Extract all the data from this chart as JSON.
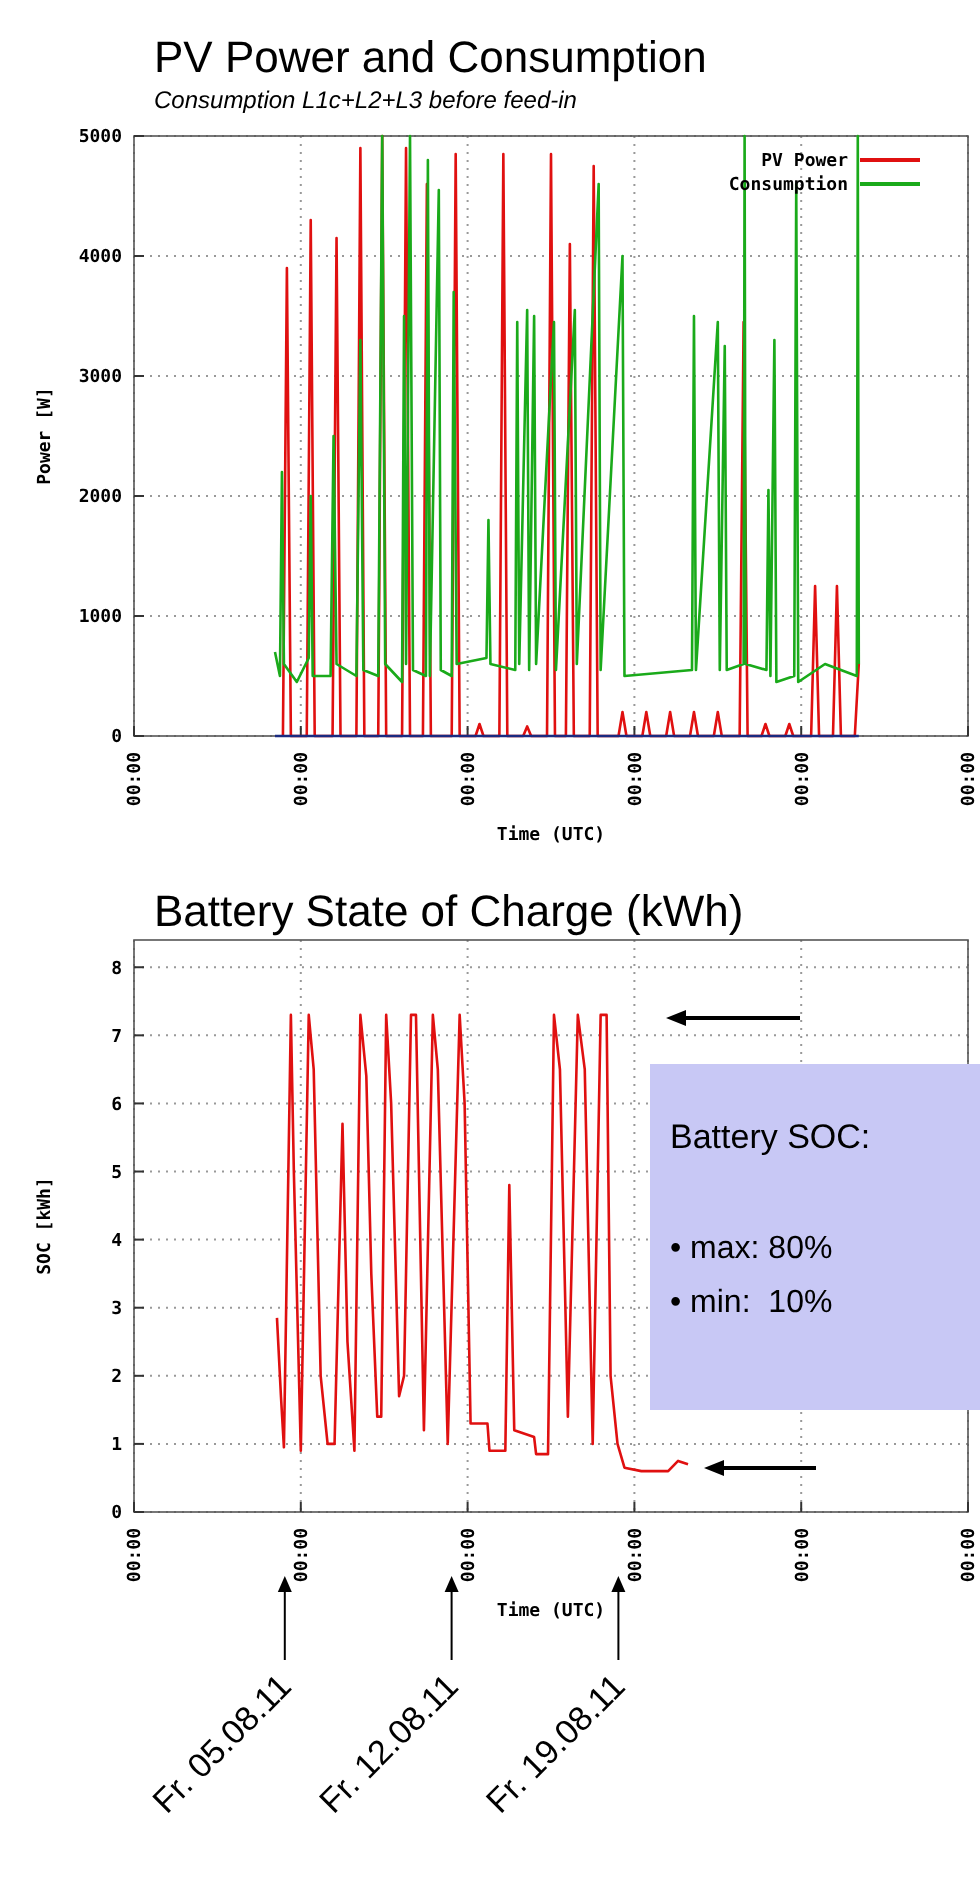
{
  "chart_data": [
    {
      "type": "line",
      "title": "PV Power and Consumption",
      "subtitle": "Consumption L1c+L2+L3 before feed-in",
      "xlabel": "Time (UTC)",
      "ylabel": "Power [W]",
      "xlim": [
        "--07-29",
        "--09-02"
      ],
      "xticks": [
        {
          "value": "--07-29",
          "label": "00:00"
        },
        {
          "value": "--08-05",
          "label": "00:00"
        },
        {
          "value": "--08-12",
          "label": "00:00"
        },
        {
          "value": "--08-19",
          "label": "00:00"
        },
        {
          "value": "--08-26",
          "label": "00:00"
        },
        {
          "value": "--09-02",
          "label": "00:00"
        }
      ],
      "ylim": [
        0,
        5000
      ],
      "yticks": [
        0,
        1000,
        2000,
        3000,
        4000,
        5000
      ],
      "grid": true,
      "legend": "top right",
      "series": [
        {
          "name": "PV Power",
          "color": "#e01010",
          "x": [
            "--08-04T06:00",
            "--08-04T10:00",
            "--08-04T14:00",
            "--08-05T06:00",
            "--08-05T10:00",
            "--08-05T14:00",
            "--08-06T08:00",
            "--08-06T12:00",
            "--08-06T16:00",
            "--08-07T08:00",
            "--08-07T12:00",
            "--08-07T16:00",
            "--08-08T06:00",
            "--08-08T10:00",
            "--08-08T14:00",
            "--08-09T06:00",
            "--08-09T10:00",
            "--08-09T14:00",
            "--08-10T03:00",
            "--08-10T07:00",
            "--08-10T11:00",
            "--08-11T08:00",
            "--08-11T12:00",
            "--08-11T16:00",
            "--08-12T08:00",
            "--08-12T12:00",
            "--08-12T16:00",
            "--08-13T08:00",
            "--08-13T12:00",
            "--08-13T16:00",
            "--08-14T08:00",
            "--08-14T12:00",
            "--08-14T16:00",
            "--08-15T08:00",
            "--08-15T12:00",
            "--08-15T16:00",
            "--08-16T03:00",
            "--08-16T07:00",
            "--08-16T11:00",
            "--08-17T03:00",
            "--08-17T07:00",
            "--08-17T11:00",
            "--08-18T08:00",
            "--08-18T12:00",
            "--08-18T16:00",
            "--08-19T08:00",
            "--08-19T12:00",
            "--08-19T16:00",
            "--08-20T08:00",
            "--08-20T12:00",
            "--08-20T16:00",
            "--08-21T08:00",
            "--08-21T12:00",
            "--08-21T16:00",
            "--08-22T08:00",
            "--08-22T12:00",
            "--08-22T16:00",
            "--08-23T10:00",
            "--08-23T14:00",
            "--08-23T18:00",
            "--08-24T08:00",
            "--08-24T12:00",
            "--08-24T16:00",
            "--08-25T08:00",
            "--08-25T12:00",
            "--08-25T16:00",
            "--08-26T10:00",
            "--08-26T14:00",
            "--08-26T18:00",
            "--08-27T08:00",
            "--08-27T12:00",
            "--08-27T16:00",
            "--08-28T06:00",
            "--08-28T10:00"
          ],
          "values": [
            0,
            3900,
            0,
            0,
            4300,
            0,
            0,
            4150,
            0,
            0,
            4900,
            0,
            0,
            5000,
            0,
            0,
            4900,
            0,
            0,
            4600,
            0,
            0,
            4850,
            0,
            0,
            100,
            0,
            0,
            4850,
            0,
            0,
            80,
            0,
            0,
            4850,
            0,
            0,
            4100,
            0,
            0,
            4750,
            0,
            0,
            200,
            0,
            0,
            200,
            0,
            0,
            200,
            0,
            0,
            200,
            0,
            0,
            200,
            0,
            0,
            3450,
            0,
            0,
            100,
            0,
            0,
            100,
            0,
            0,
            1250,
            0,
            0,
            1250,
            0,
            0,
            600
          ]
        },
        {
          "name": "Consumption",
          "color": "#1aaa1a",
          "x": [
            "--08-03T22:00",
            "--08-04T03:00",
            "--08-04T05:00",
            "--08-04T07:00",
            "--08-04T20:00",
            "--08-05T08:00",
            "--08-05T10:00",
            "--08-05T12:00",
            "--08-06T06:00",
            "--08-06T09:00",
            "--08-06T12:00",
            "--08-07T08:00",
            "--08-07T12:00",
            "--08-07T15:00",
            "--08-08T06:00",
            "--08-08T10:00",
            "--08-08T13:00",
            "--08-09T06:00",
            "--08-09T08:00",
            "--08-09T10:00",
            "--08-09T14:00",
            "--08-09T17:00",
            "--08-10T06:00",
            "--08-10T08:00",
            "--08-10T10:00",
            "--08-10T19:00",
            "--08-10T21:00",
            "--08-11T08:00",
            "--08-11T10:00",
            "--08-11T13:00",
            "--08-12T19:00",
            "--08-12T21:00",
            "--08-12T23:00",
            "--08-14T00:00",
            "--08-14T02:00",
            "--08-14T04:00",
            "--08-14T12:00",
            "--08-14T14:00",
            "--08-14T19:00",
            "--08-14T21:00",
            "--08-15T15:00",
            "--08-15T17:00",
            "--08-16T12:00",
            "--08-16T14:00",
            "--08-17T12:00",
            "--08-17T14:00",
            "--08-18T12:00",
            "--08-18T14:00",
            "--08-21T10:00",
            "--08-21T12:00",
            "--08-21T14:00",
            "--08-22T12:00",
            "--08-22T14:00",
            "--08-22T19:00",
            "--08-22T21:00",
            "--08-23T14:00",
            "--08-23T15:00",
            "--08-23T16:00",
            "--08-24T13:00",
            "--08-24T15:00",
            "--08-24T17:00",
            "--08-24T21:00",
            "--08-24T23:00",
            "--08-25T17:00",
            "--08-25T19:00",
            "--08-25T21:00",
            "--08-27T00:00",
            "--08-28T08:00",
            "--08-28T09:00",
            "--08-28T10:00"
          ],
          "values": [
            700,
            500,
            2200,
            600,
            450,
            650,
            2000,
            500,
            500,
            2500,
            600,
            500,
            3300,
            550,
            500,
            5000,
            600,
            450,
            3500,
            600,
            5000,
            550,
            500,
            4800,
            500,
            4550,
            550,
            500,
            3700,
            600,
            650,
            1800,
            600,
            550,
            3450,
            600,
            3550,
            550,
            3500,
            600,
            3450,
            550,
            3550,
            600,
            4600,
            550,
            4000,
            500,
            550,
            3500,
            550,
            3450,
            550,
            3250,
            550,
            600,
            5000,
            600,
            550,
            2050,
            500,
            3300,
            450,
            500,
            4600,
            450,
            600,
            500,
            5000,
            600
          ]
        },
        {
          "color": "#1a2a80",
          "x": [
            "--08-03T22:00",
            "--08-28T10:00"
          ],
          "values": [
            0,
            0
          ]
        }
      ]
    },
    {
      "type": "line",
      "title": "Battery State of Charge (kWh)",
      "xlabel": "Time (UTC)",
      "ylabel": "SOC [kWh]",
      "xlim": [
        "--07-29",
        "--09-02"
      ],
      "xticks": [
        {
          "value": "--07-29",
          "label": "00:00"
        },
        {
          "value": "--08-05",
          "label": "00:00"
        },
        {
          "value": "--08-12",
          "label": "00:00"
        },
        {
          "value": "--08-19",
          "label": "00:00"
        },
        {
          "value": "--08-26",
          "label": "00:00"
        },
        {
          "value": "--09-02",
          "label": "00:00"
        }
      ],
      "ylim": [
        0,
        8.4
      ],
      "yticks": [
        0,
        1,
        2,
        3,
        4,
        5,
        6,
        7,
        8
      ],
      "grid": true,
      "annotations": [
        "Battery SOC:",
        "• max: 80%",
        "• min:  10%",
        "Fr. 05.08.11",
        "Fr. 12.08.11",
        "Fr. 19.08.11"
      ],
      "series": [
        {
          "color": "#e01010",
          "x": [
            "--08-04T00:00",
            "--08-04T04:00",
            "--08-04T07:00",
            "--08-04T14:00",
            "--08-04T17:00",
            "--08-05T00:00",
            "--08-05T08:00",
            "--08-05T13:00",
            "--08-05T20:00",
            "--08-06T03:00",
            "--08-06T10:00",
            "--08-06T18:00",
            "--08-06T23:00",
            "--08-07T06:00",
            "--08-07T12:00",
            "--08-07T18:00",
            "--08-07T23:00",
            "--08-08T05:00",
            "--08-08T09:00",
            "--08-08T14:00",
            "--08-08T19:00",
            "--08-09T03:00",
            "--08-09T08:00",
            "--08-09T15:00",
            "--08-09T20:00",
            "--08-10T04:00",
            "--08-10T13:00",
            "--08-10T18:00",
            "--08-11T04:00",
            "--08-11T16:00",
            "--08-11T21:00",
            "--08-12T03:00",
            "--08-12T20:00",
            "--08-12T22:00",
            "--08-13T14:00",
            "--08-13T18:00",
            "--08-13T23:00",
            "--08-14T19:00",
            "--08-14T21:00",
            "--08-15T09:00",
            "--08-15T15:00",
            "--08-15T21:00",
            "--08-16T05:00",
            "--08-16T15:00",
            "--08-16T22:00",
            "--08-17T06:00",
            "--08-17T14:00",
            "--08-17T20:00",
            "--08-18T00:00",
            "--08-18T07:00",
            "--08-18T14:00",
            "--08-19T07:00",
            "--08-20T10:00",
            "--08-20T20:00",
            "--08-21T06:00"
          ],
          "values": [
            2.85,
            1.7,
            0.95,
            7.3,
            5.0,
            0.9,
            7.3,
            6.5,
            2.0,
            1.0,
            1.0,
            5.7,
            2.5,
            0.9,
            7.3,
            6.4,
            3.5,
            1.4,
            1.4,
            7.3,
            6.0,
            1.7,
            2.0,
            7.3,
            7.3,
            1.2,
            7.3,
            6.5,
            1.0,
            7.3,
            6.0,
            1.3,
            1.3,
            0.9,
            0.9,
            4.8,
            1.2,
            1.1,
            0.85,
            0.85,
            7.3,
            6.5,
            1.4,
            7.3,
            6.5,
            1.0,
            7.3,
            7.3,
            2.0,
            1.0,
            0.65,
            0.6,
            0.6,
            0.75,
            0.7
          ]
        }
      ]
    }
  ]
}
